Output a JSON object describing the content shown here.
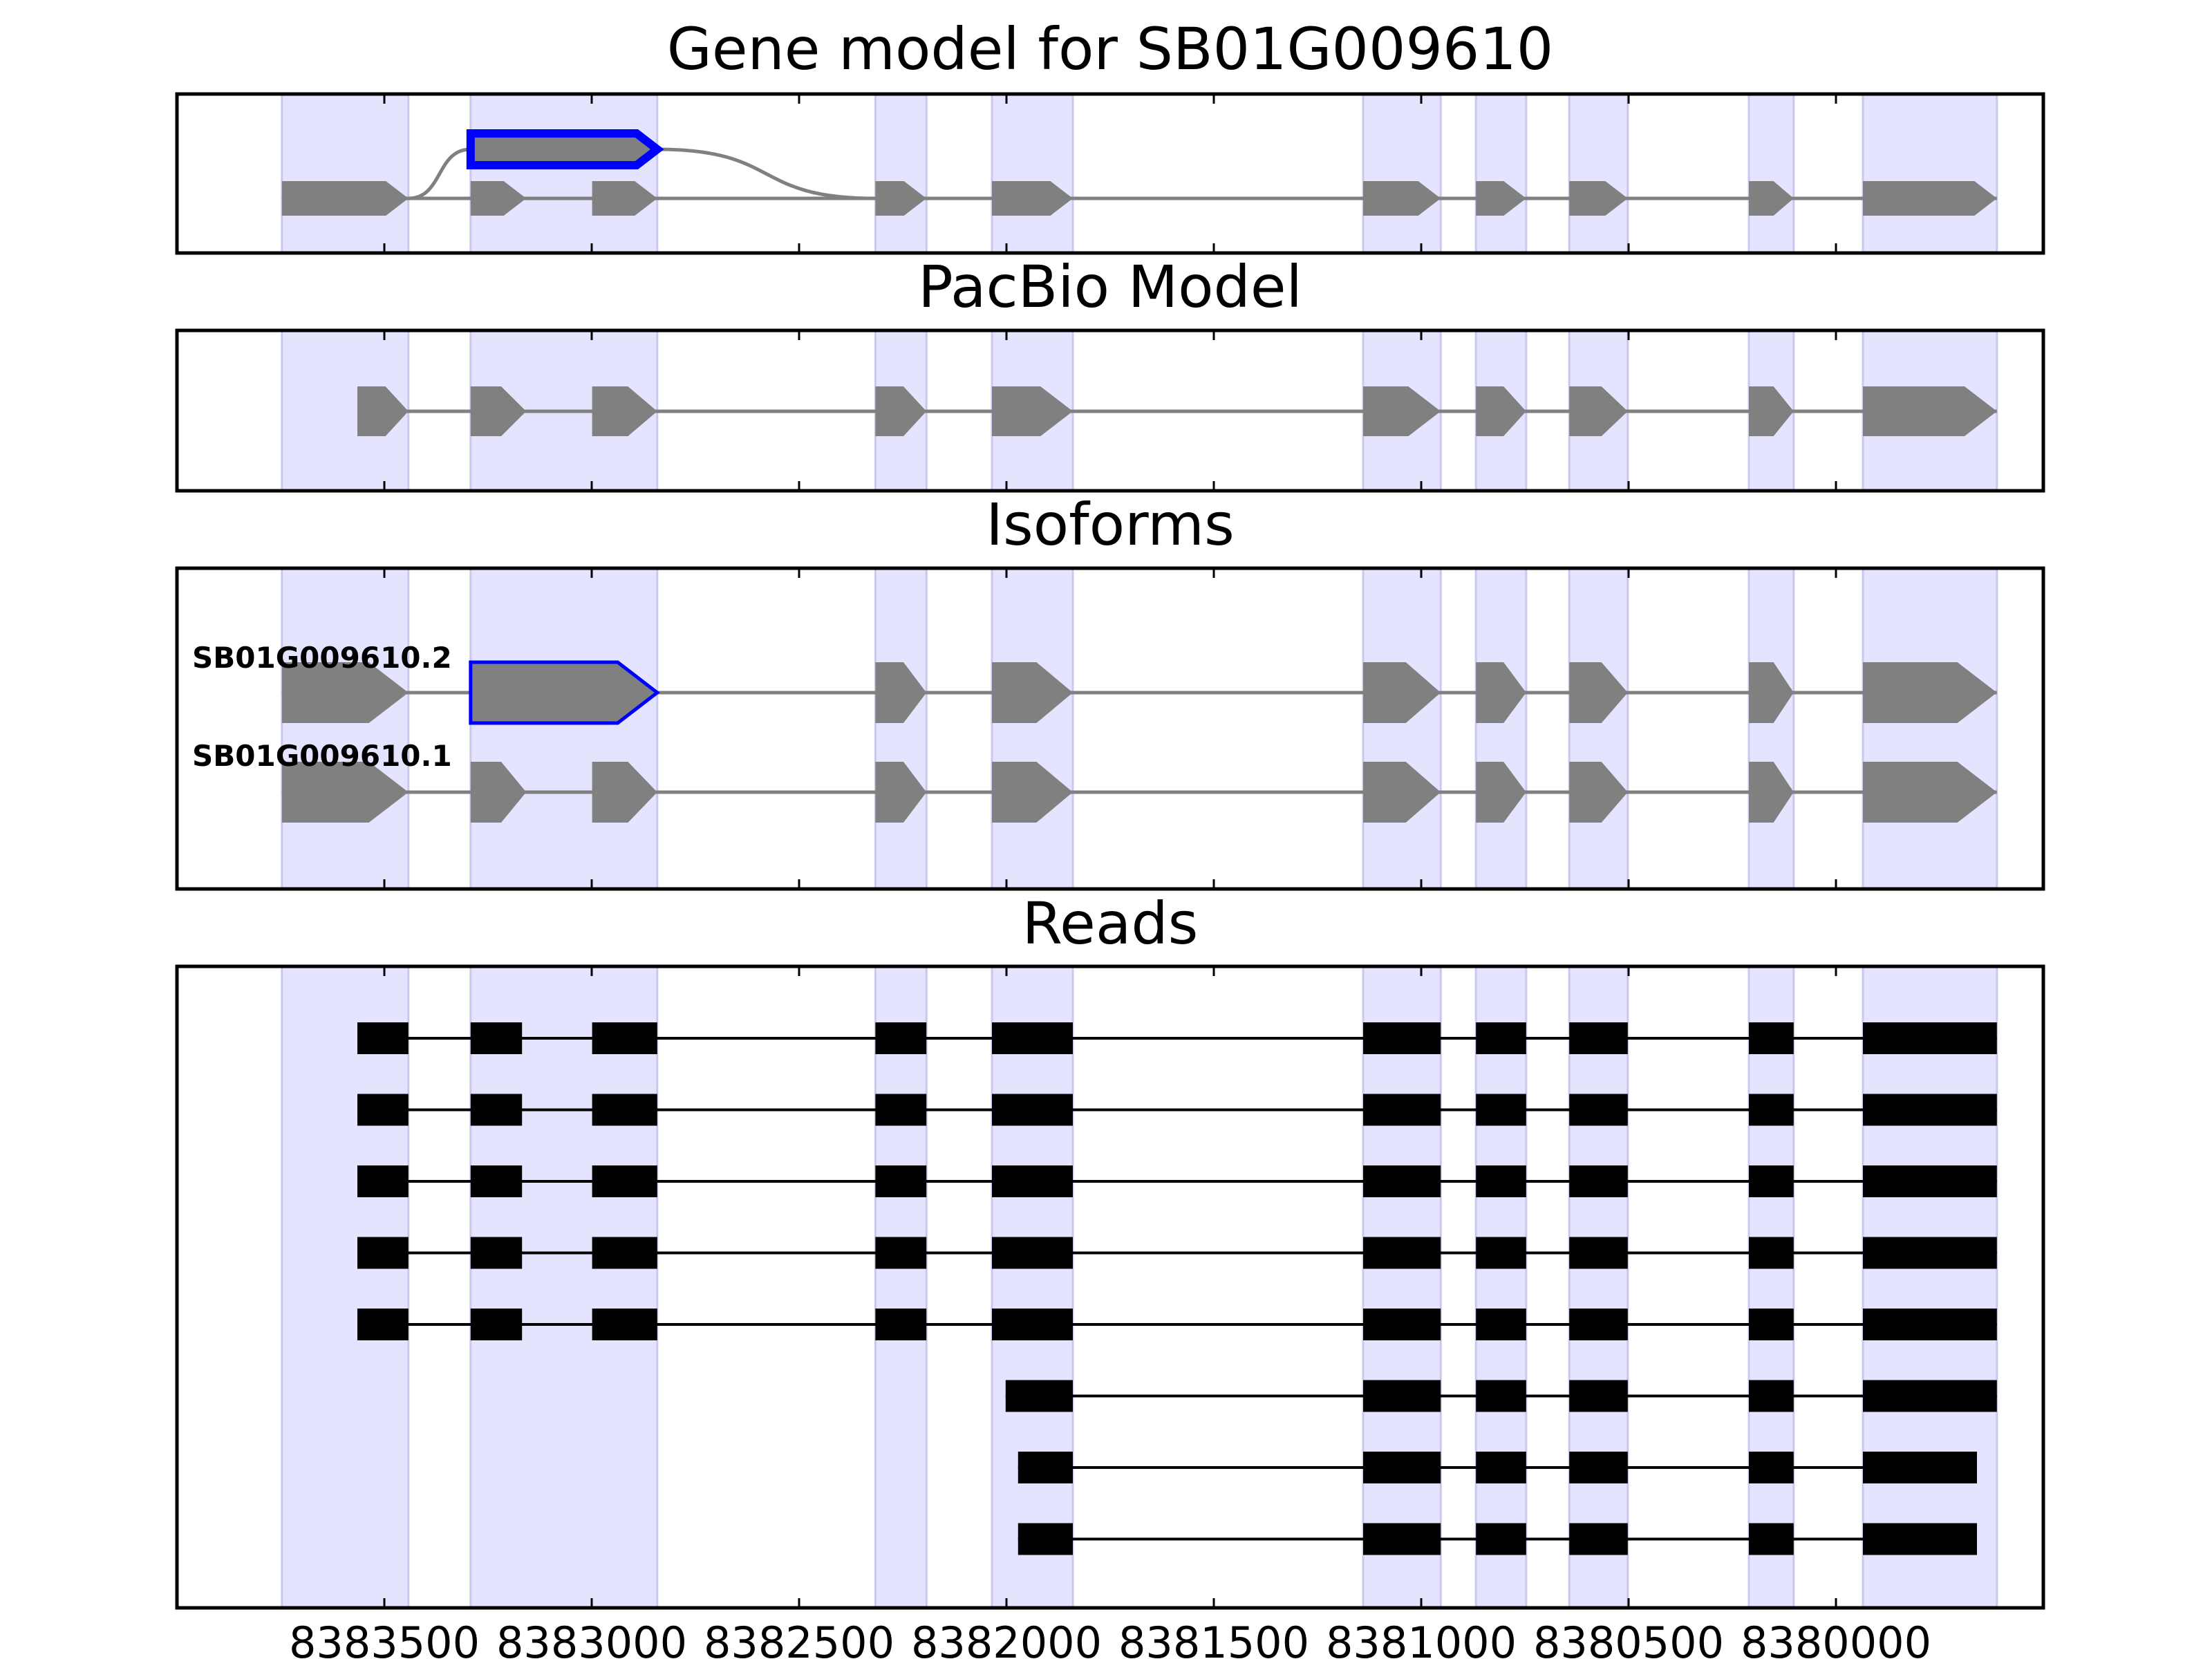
{
  "figure": {
    "panel_titles": {
      "gene_model": "Gene model for SB01G009610",
      "pacbio": "PacBio Model",
      "isoforms": "Isoforms",
      "reads": "Reads"
    },
    "colors": {
      "highlight": "#e4e4ff",
      "highlight_edge": "#c8c8f0",
      "exon_gray": "#808080",
      "intron_gray": "#808080",
      "selected_outline": "#0000ff",
      "read_black": "#000000"
    }
  },
  "chart_data": {
    "type": "gene-structure",
    "xaxis": {
      "range": [
        8384000,
        8379500
      ],
      "ticks": [
        8383500,
        8383000,
        8382500,
        8382000,
        8381500,
        8381000,
        8380500,
        8380000
      ],
      "tick_labels": [
        "8383500",
        "8383000",
        "8382500",
        "8382000",
        "8381500",
        "8381000",
        "8380500",
        "8380000"
      ]
    },
    "strand": "-",
    "highlight_regions": [
      [
        8383747,
        8383442
      ],
      [
        8383292,
        8382842
      ],
      [
        8382316,
        8382193
      ],
      [
        8382035,
        8381840
      ],
      [
        8381140,
        8380953
      ],
      [
        8380868,
        8380747
      ],
      [
        8380643,
        8380502
      ],
      [
        8380210,
        8380102
      ],
      [
        8379935,
        8379612
      ]
    ],
    "gene_model": {
      "main_path_exons": [
        [
          8383747,
          8383442
        ],
        [
          8383292,
          8383158
        ],
        [
          8382999,
          8382842
        ],
        [
          8382316,
          8382193
        ],
        [
          8382035,
          8381840
        ],
        [
          8381140,
          8380953
        ],
        [
          8380868,
          8380747
        ],
        [
          8380643,
          8380502
        ],
        [
          8380210,
          8380102
        ],
        [
          8379935,
          8379612
        ]
      ],
      "alternative_exon": [
        8383292,
        8382842
      ],
      "alternative_from": 8383442,
      "alternative_to": 8382316
    },
    "pacbio_model": {
      "exons": [
        [
          8383565,
          8383442
        ],
        [
          8383292,
          8383158
        ],
        [
          8382999,
          8382842
        ],
        [
          8382316,
          8382193
        ],
        [
          8382035,
          8381840
        ],
        [
          8381140,
          8380953
        ],
        [
          8380868,
          8380747
        ],
        [
          8380643,
          8380502
        ],
        [
          8380210,
          8380102
        ],
        [
          8379935,
          8379612
        ]
      ]
    },
    "isoforms": [
      {
        "name": "SB01G009610.2",
        "selected_exon": 1,
        "exons": [
          [
            8383747,
            8383442
          ],
          [
            8383292,
            8382842
          ],
          [
            8382316,
            8382193
          ],
          [
            8382035,
            8381840
          ],
          [
            8381140,
            8380953
          ],
          [
            8380868,
            8380747
          ],
          [
            8380643,
            8380502
          ],
          [
            8380210,
            8380102
          ],
          [
            8379935,
            8379612
          ]
        ]
      },
      {
        "name": "SB01G009610.1",
        "exons": [
          [
            8383747,
            8383442
          ],
          [
            8383292,
            8383158
          ],
          [
            8382999,
            8382842
          ],
          [
            8382316,
            8382193
          ],
          [
            8382035,
            8381840
          ],
          [
            8381140,
            8380953
          ],
          [
            8380868,
            8380747
          ],
          [
            8380643,
            8380502
          ],
          [
            8380210,
            8380102
          ],
          [
            8379935,
            8379612
          ]
        ]
      }
    ],
    "reads": [
      [
        [
          8383565,
          8383442
        ],
        [
          8383292,
          8383168
        ],
        [
          8382999,
          8382842
        ],
        [
          8382316,
          8382193
        ],
        [
          8382035,
          8381840
        ],
        [
          8381140,
          8380953
        ],
        [
          8380868,
          8380747
        ],
        [
          8380643,
          8380502
        ],
        [
          8380210,
          8380102
        ],
        [
          8379935,
          8379612
        ]
      ],
      [
        [
          8383565,
          8383442
        ],
        [
          8383292,
          8383168
        ],
        [
          8382999,
          8382842
        ],
        [
          8382316,
          8382193
        ],
        [
          8382035,
          8381840
        ],
        [
          8381140,
          8380953
        ],
        [
          8380868,
          8380747
        ],
        [
          8380643,
          8380502
        ],
        [
          8380210,
          8380102
        ],
        [
          8379935,
          8379612
        ]
      ],
      [
        [
          8383565,
          8383442
        ],
        [
          8383292,
          8383168
        ],
        [
          8382999,
          8382842
        ],
        [
          8382316,
          8382193
        ],
        [
          8382035,
          8381840
        ],
        [
          8381140,
          8380953
        ],
        [
          8380868,
          8380747
        ],
        [
          8380643,
          8380502
        ],
        [
          8380210,
          8380102
        ],
        [
          8379935,
          8379612
        ]
      ],
      [
        [
          8383565,
          8383442
        ],
        [
          8383292,
          8383168
        ],
        [
          8382999,
          8382842
        ],
        [
          8382316,
          8382193
        ],
        [
          8382035,
          8381840
        ],
        [
          8381140,
          8380953
        ],
        [
          8380868,
          8380747
        ],
        [
          8380643,
          8380502
        ],
        [
          8380210,
          8380102
        ],
        [
          8379935,
          8379612
        ]
      ],
      [
        [
          8383565,
          8383442
        ],
        [
          8383292,
          8383168
        ],
        [
          8382999,
          8382842
        ],
        [
          8382316,
          8382193
        ],
        [
          8382035,
          8381840
        ],
        [
          8381140,
          8380953
        ],
        [
          8380868,
          8380747
        ],
        [
          8380643,
          8380502
        ],
        [
          8380210,
          8380102
        ],
        [
          8379935,
          8379612
        ]
      ],
      [
        [
          8382002,
          8381840
        ],
        [
          8381140,
          8380953
        ],
        [
          8380868,
          8380747
        ],
        [
          8380643,
          8380502
        ],
        [
          8380210,
          8380102
        ],
        [
          8379935,
          8379612
        ]
      ],
      [
        [
          8381972,
          8381840
        ],
        [
          8381140,
          8380953
        ],
        [
          8380868,
          8380747
        ],
        [
          8380643,
          8380502
        ],
        [
          8380210,
          8380102
        ],
        [
          8379935,
          8379660
        ]
      ],
      [
        [
          8381972,
          8381840
        ],
        [
          8381140,
          8380953
        ],
        [
          8380868,
          8380747
        ],
        [
          8380643,
          8380502
        ],
        [
          8380210,
          8380102
        ],
        [
          8379935,
          8379660
        ]
      ]
    ]
  }
}
